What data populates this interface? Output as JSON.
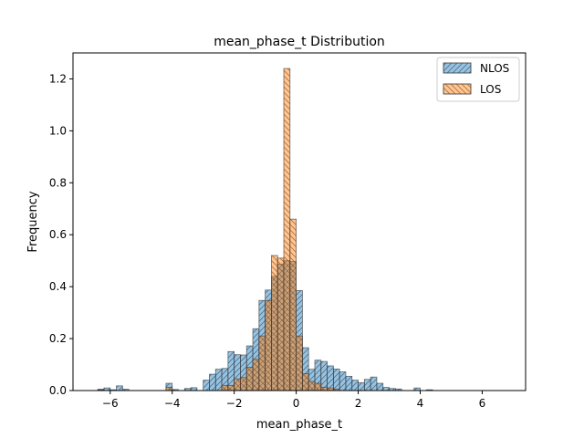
{
  "chart_data": {
    "type": "bar",
    "title": "mean_phase_t Distribution",
    "xlabel": "mean_phase_t",
    "ylabel": "Frequency",
    "xlim": [
      -7.2,
      7.4
    ],
    "ylim": [
      0,
      1.3
    ],
    "xticks": [
      -6,
      -4,
      -2,
      0,
      2,
      4,
      6
    ],
    "yticks": [
      0.0,
      0.2,
      0.4,
      0.6,
      0.8,
      1.0,
      1.2
    ],
    "bin_width": 0.2,
    "legend_position": "top-right",
    "series": [
      {
        "name": "NLOS",
        "color": "#1f77b4",
        "hatch": "///",
        "bins": [
          [
            -6.3,
            0.005
          ],
          [
            -6.1,
            0.01
          ],
          [
            -5.9,
            0.003
          ],
          [
            -5.7,
            0.018
          ],
          [
            -5.5,
            0.005
          ],
          [
            -4.1,
            0.028
          ],
          [
            -3.9,
            0.004
          ],
          [
            -3.5,
            0.008
          ],
          [
            -3.3,
            0.011
          ],
          [
            -2.9,
            0.04
          ],
          [
            -2.7,
            0.063
          ],
          [
            -2.5,
            0.082
          ],
          [
            -2.3,
            0.085
          ],
          [
            -2.1,
            0.15
          ],
          [
            -1.9,
            0.138
          ],
          [
            -1.7,
            0.137
          ],
          [
            -1.5,
            0.172
          ],
          [
            -1.3,
            0.238
          ],
          [
            -1.1,
            0.347
          ],
          [
            -0.9,
            0.387
          ],
          [
            -0.7,
            0.44
          ],
          [
            -0.5,
            0.487
          ],
          [
            -0.3,
            0.5
          ],
          [
            -0.1,
            0.497
          ],
          [
            0.1,
            0.385
          ],
          [
            0.3,
            0.165
          ],
          [
            0.5,
            0.082
          ],
          [
            0.7,
            0.117
          ],
          [
            0.9,
            0.112
          ],
          [
            1.1,
            0.095
          ],
          [
            1.3,
            0.083
          ],
          [
            1.5,
            0.072
          ],
          [
            1.7,
            0.055
          ],
          [
            1.9,
            0.04
          ],
          [
            2.1,
            0.03
          ],
          [
            2.3,
            0.043
          ],
          [
            2.5,
            0.052
          ],
          [
            2.7,
            0.028
          ],
          [
            2.9,
            0.012
          ],
          [
            3.1,
            0.008
          ],
          [
            3.3,
            0.006
          ],
          [
            3.9,
            0.01
          ],
          [
            4.3,
            0.003
          ]
        ]
      },
      {
        "name": "LOS",
        "color": "#ff7f0e",
        "hatch": "\\\\",
        "bins": [
          [
            -6.3,
            0.003
          ],
          [
            -4.1,
            0.012
          ],
          [
            -2.3,
            0.02
          ],
          [
            -2.1,
            0.02
          ],
          [
            -1.9,
            0.045
          ],
          [
            -1.7,
            0.05
          ],
          [
            -1.5,
            0.09
          ],
          [
            -1.3,
            0.12
          ],
          [
            -1.1,
            0.21
          ],
          [
            -0.9,
            0.347
          ],
          [
            -0.7,
            0.52
          ],
          [
            -0.5,
            0.51
          ],
          [
            -0.3,
            1.24
          ],
          [
            -0.1,
            0.66
          ],
          [
            0.1,
            0.21
          ],
          [
            0.3,
            0.065
          ],
          [
            0.5,
            0.035
          ],
          [
            0.7,
            0.028
          ],
          [
            0.9,
            0.013
          ],
          [
            1.1,
            0.01
          ],
          [
            1.3,
            0.006
          ]
        ]
      }
    ]
  }
}
